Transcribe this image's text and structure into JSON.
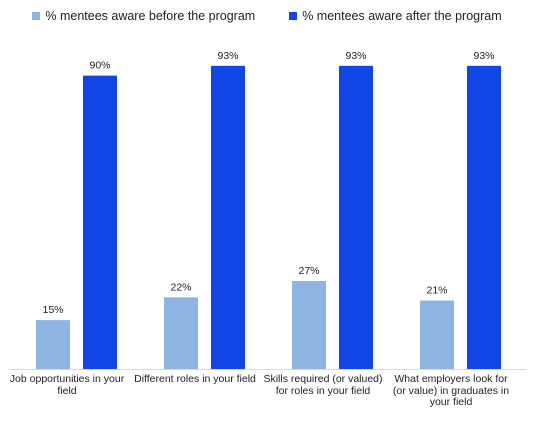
{
  "chart_data": {
    "type": "bar",
    "categories": [
      "Job opportunities in your field",
      "Different roles in your field",
      "Skills required (or valued) for roles in your field",
      "What employers look for (or value) in graduates in your field"
    ],
    "series": [
      {
        "name": "% mentees aware before the program",
        "values": [
          15,
          22,
          27,
          21
        ],
        "color": "#8eb4e3"
      },
      {
        "name": "% mentees aware after the program",
        "values": [
          90,
          93,
          93,
          93
        ],
        "color": "#1147e6"
      }
    ],
    "value_suffix": "%",
    "ylim": [
      0,
      100
    ],
    "legend_position": "top",
    "grid": false
  }
}
